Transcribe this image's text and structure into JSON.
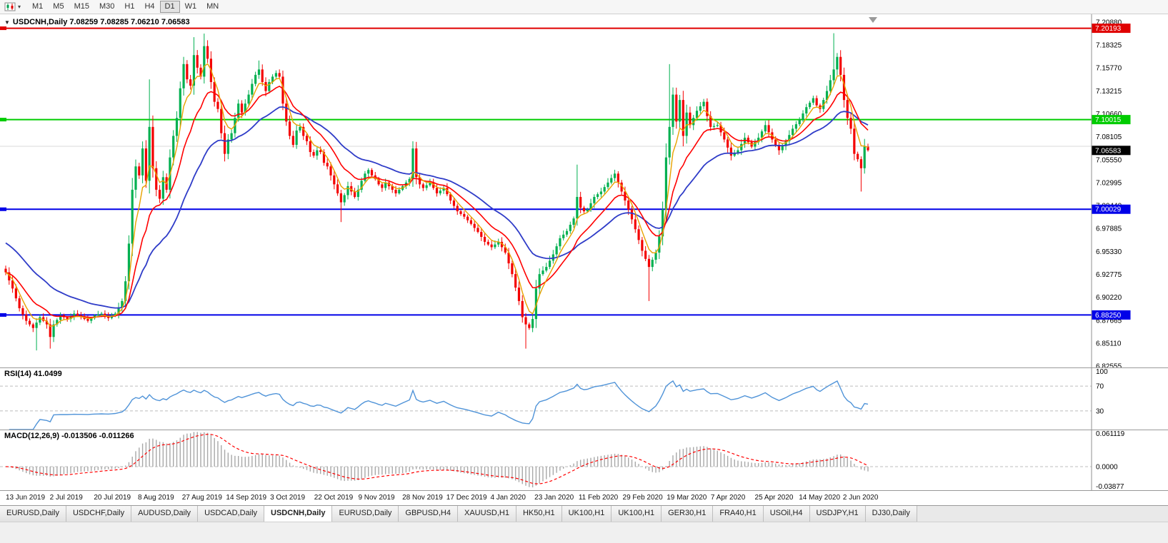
{
  "toolbar": {
    "timeframes": [
      "M1",
      "M5",
      "M15",
      "M30",
      "H1",
      "H4",
      "D1",
      "W1",
      "MN"
    ],
    "active_timeframe": "D1"
  },
  "chart": {
    "symbol_label": "USDCNH,Daily",
    "ohlc": {
      "open": "7.08259",
      "high": "7.08285",
      "low": "7.06210",
      "close": "7.06583"
    },
    "header_text": "USDCNH,Daily  7.08259 7.08285 7.06210 7.06583",
    "price_axis_labels": [
      "7.20880",
      "7.18325",
      "7.15770",
      "7.13215",
      "7.10660",
      "7.08105",
      "7.05550",
      "7.02995",
      "7.00440",
      "6.97885",
      "6.95330",
      "6.92775",
      "6.90220",
      "6.87665",
      "6.85110",
      "6.82555"
    ],
    "scale": {
      "p_top": 7.2175,
      "p_bottom": 6.824
    },
    "faint_line": 7.0704,
    "hlines": [
      {
        "price": 7.20193,
        "label": "7.20193",
        "color": "#e00000"
      },
      {
        "price": 7.10015,
        "label": "7.10015",
        "color": "#00cc00"
      },
      {
        "price": 7.00029,
        "label": "7.00029",
        "color": "#0000e8"
      },
      {
        "price": 6.8825,
        "label": "6.88250",
        "color": "#0000e8"
      }
    ],
    "current_price": {
      "value": 7.06583,
      "label": "7.06583",
      "bg": "#000000"
    },
    "colors": {
      "bull": "#00b050",
      "bear": "#f40000",
      "ma_fast": "#e8a200",
      "ma_mid": "#ff0000",
      "ma_slow": "#2f3cc8",
      "axis_line": "#909090"
    },
    "ma_periods": {
      "fast": 5,
      "mid": 13,
      "slow": 30,
      "slow_seed": 6.965
    },
    "candles": {
      "count": 253,
      "close_keyframes": [
        [
          0,
          6.93
        ],
        [
          2,
          6.912
        ],
        [
          4,
          6.89
        ],
        [
          6,
          6.876
        ],
        [
          8,
          6.868
        ],
        [
          10,
          6.88
        ],
        [
          12,
          6.872
        ],
        [
          13,
          6.858
        ],
        [
          14,
          6.872
        ],
        [
          16,
          6.882
        ],
        [
          18,
          6.878
        ],
        [
          20,
          6.884
        ],
        [
          22,
          6.88
        ],
        [
          24,
          6.876
        ],
        [
          26,
          6.882
        ],
        [
          28,
          6.884
        ],
        [
          30,
          6.879
        ],
        [
          32,
          6.884
        ],
        [
          34,
          6.898
        ],
        [
          35,
          6.92
        ],
        [
          36,
          6.962
        ],
        [
          37,
          7.022
        ],
        [
          38,
          7.048
        ],
        [
          39,
          7.038
        ],
        [
          40,
          7.068
        ],
        [
          41,
          7.032
        ],
        [
          42,
          7.092
        ],
        [
          43,
          7.046
        ],
        [
          44,
          7.022
        ],
        [
          45,
          7.012
        ],
        [
          46,
          7.036
        ],
        [
          47,
          7.022
        ],
        [
          48,
          7.058
        ],
        [
          49,
          7.082
        ],
        [
          50,
          7.102
        ],
        [
          51,
          7.135
        ],
        [
          52,
          7.162
        ],
        [
          53,
          7.145
        ],
        [
          54,
          7.138
        ],
        [
          55,
          7.172
        ],
        [
          56,
          7.158
        ],
        [
          57,
          7.148
        ],
        [
          58,
          7.182
        ],
        [
          59,
          7.168
        ],
        [
          60,
          7.142
        ],
        [
          61,
          7.12
        ],
        [
          62,
          7.112
        ],
        [
          63,
          7.085
        ],
        [
          64,
          7.062
        ],
        [
          65,
          7.078
        ],
        [
          66,
          7.085
        ],
        [
          67,
          7.102
        ],
        [
          68,
          7.118
        ],
        [
          69,
          7.108
        ],
        [
          70,
          7.118
        ],
        [
          71,
          7.128
        ],
        [
          72,
          7.14
        ],
        [
          73,
          7.15
        ],
        [
          74,
          7.156
        ],
        [
          75,
          7.142
        ],
        [
          76,
          7.132
        ],
        [
          77,
          7.142
        ],
        [
          78,
          7.148
        ],
        [
          79,
          7.152
        ],
        [
          80,
          7.148
        ],
        [
          81,
          7.118
        ],
        [
          82,
          7.098
        ],
        [
          83,
          7.082
        ],
        [
          84,
          7.072
        ],
        [
          85,
          7.088
        ],
        [
          86,
          7.092
        ],
        [
          87,
          7.082
        ],
        [
          88,
          7.076
        ],
        [
          89,
          7.064
        ],
        [
          90,
          7.06
        ],
        [
          91,
          7.066
        ],
        [
          92,
          7.064
        ],
        [
          93,
          7.052
        ],
        [
          94,
          7.048
        ],
        [
          95,
          7.038
        ],
        [
          96,
          7.028
        ],
        [
          97,
          7.018
        ],
        [
          98,
          7.008
        ],
        [
          99,
          7.016
        ],
        [
          100,
          7.026
        ],
        [
          101,
          7.02
        ],
        [
          102,
          7.014
        ],
        [
          103,
          7.022
        ],
        [
          104,
          7.032
        ],
        [
          105,
          7.04
        ],
        [
          106,
          7.044
        ],
        [
          107,
          7.038
        ],
        [
          108,
          7.034
        ],
        [
          109,
          7.028
        ],
        [
          110,
          7.024
        ],
        [
          111,
          7.03
        ],
        [
          113,
          7.022
        ],
        [
          114,
          7.018
        ],
        [
          116,
          7.026
        ],
        [
          118,
          7.034
        ],
        [
          119,
          7.068
        ],
        [
          120,
          7.036
        ],
        [
          121,
          7.028
        ],
        [
          122,
          7.024
        ],
        [
          124,
          7.03
        ],
        [
          126,
          7.018
        ],
        [
          128,
          7.024
        ],
        [
          130,
          7.01
        ],
        [
          132,
          6.998
        ],
        [
          134,
          6.992
        ],
        [
          136,
          6.984
        ],
        [
          138,
          6.975
        ],
        [
          140,
          6.964
        ],
        [
          142,
          6.958
        ],
        [
          144,
          6.964
        ],
        [
          146,
          6.952
        ],
        [
          148,
          6.928
        ],
        [
          150,
          6.898
        ],
        [
          151,
          6.88
        ],
        [
          152,
          6.872
        ],
        [
          153,
          6.868
        ],
        [
          154,
          6.878
        ],
        [
          155,
          6.912
        ],
        [
          156,
          6.928
        ],
        [
          158,
          6.936
        ],
        [
          160,
          6.95
        ],
        [
          162,
          6.968
        ],
        [
          164,
          6.976
        ],
        [
          166,
          6.99
        ],
        [
          167,
          7.014
        ],
        [
          168,
          7.002
        ],
        [
          169,
          6.998
        ],
        [
          170,
          7.0
        ],
        [
          172,
          7.014
        ],
        [
          174,
          7.02
        ],
        [
          176,
          7.03
        ],
        [
          178,
          7.04
        ],
        [
          179,
          7.03
        ],
        [
          180,
          7.02
        ],
        [
          182,
          7.0
        ],
        [
          184,
          6.978
        ],
        [
          186,
          6.954
        ],
        [
          188,
          6.936
        ],
        [
          189,
          6.944
        ],
        [
          190,
          6.952
        ],
        [
          191,
          6.97
        ],
        [
          192,
          7.0
        ],
        [
          193,
          7.058
        ],
        [
          194,
          7.092
        ],
        [
          195,
          7.128
        ],
        [
          196,
          7.098
        ],
        [
          197,
          7.122
        ],
        [
          198,
          7.082
        ],
        [
          199,
          7.108
        ],
        [
          200,
          7.094
        ],
        [
          202,
          7.11
        ],
        [
          204,
          7.12
        ],
        [
          205,
          7.104
        ],
        [
          206,
          7.092
        ],
        [
          208,
          7.094
        ],
        [
          210,
          7.078
        ],
        [
          212,
          7.06
        ],
        [
          214,
          7.066
        ],
        [
          216,
          7.08
        ],
        [
          218,
          7.07
        ],
        [
          220,
          7.08
        ],
        [
          222,
          7.094
        ],
        [
          224,
          7.078
        ],
        [
          226,
          7.066
        ],
        [
          228,
          7.076
        ],
        [
          230,
          7.09
        ],
        [
          232,
          7.1
        ],
        [
          234,
          7.114
        ],
        [
          236,
          7.124
        ],
        [
          237,
          7.116
        ],
        [
          238,
          7.112
        ],
        [
          240,
          7.132
        ],
        [
          242,
          7.156
        ],
        [
          243,
          7.17
        ],
        [
          244,
          7.15
        ],
        [
          245,
          7.122
        ],
        [
          246,
          7.102
        ],
        [
          247,
          7.09
        ],
        [
          248,
          7.062
        ],
        [
          249,
          7.056
        ],
        [
          250,
          7.046
        ],
        [
          251,
          7.07
        ],
        [
          252,
          7.066
        ]
      ],
      "wick_overrides": {
        "9": {
          "l": 6.843
        },
        "13": {
          "l": 6.845
        },
        "42": {
          "h": 7.145
        },
        "55": {
          "h": 7.192
        },
        "58": {
          "h": 7.196
        },
        "74": {
          "h": 7.166
        },
        "98": {
          "l": 6.986
        },
        "119": {
          "h": 7.076
        },
        "152": {
          "l": 6.845
        },
        "167": {
          "h": 7.05
        },
        "188": {
          "l": 6.898
        },
        "194": {
          "h": 7.162
        },
        "242": {
          "h": 7.1964
        },
        "250": {
          "l": 7.02
        }
      }
    }
  },
  "rsi": {
    "title": "RSI(14) 41.0499",
    "period": 14,
    "current_value": "41.0499",
    "color": "#4f93d8",
    "axis": [
      {
        "label": "100",
        "value": 100
      },
      {
        "label": "70",
        "value": 70
      },
      {
        "label": "30",
        "value": 30
      }
    ],
    "level_lines": [
      70,
      30
    ],
    "range": [
      0,
      100
    ]
  },
  "macd": {
    "title": "MACD(12,26,9) -0.013506 -0.011266",
    "params": "12,26,9",
    "main_value": "-0.013506",
    "signal_value": "-0.011266",
    "histogram_color": "#a8a8a8",
    "signal_color": "#ff0000",
    "axis": [
      {
        "label": "0.061119",
        "value": 0.061119
      },
      {
        "label": "0.0000",
        "value": 0
      },
      {
        "label": "-0.03877",
        "value": -0.03877
      }
    ],
    "range": [
      -0.03877,
      0.061119
    ]
  },
  "date_axis": {
    "labels": [
      "13 Jun 2019",
      "2 Jul 2019",
      "20 Jul 2019",
      "8 Aug 2019",
      "27 Aug 2019",
      "14 Sep 2019",
      "3 Oct 2019",
      "22 Oct 2019",
      "9 Nov 2019",
      "28 Nov 2019",
      "17 Dec 2019",
      "4 Jan 2020",
      "23 Jan 2020",
      "11 Feb 2020",
      "29 Feb 2020",
      "19 Mar 2020",
      "7 Apr 2020",
      "25 Apr 2020",
      "14 May 2020",
      "2 Jun 2020"
    ]
  },
  "tabs": {
    "items": [
      "EURUSD,Daily",
      "USDCHF,Daily",
      "AUDUSD,Daily",
      "USDCAD,Daily",
      "USDCNH,Daily",
      "EURUSD,Daily",
      "GBPUSD,H4",
      "XAUUSD,H1",
      "HK50,H1",
      "UK100,H1",
      "UK100,H1",
      "GER30,H1",
      "FRA40,H1",
      "USOil,H4",
      "USDJPY,H1",
      "DJ30,Daily"
    ],
    "active_index": 4
  }
}
